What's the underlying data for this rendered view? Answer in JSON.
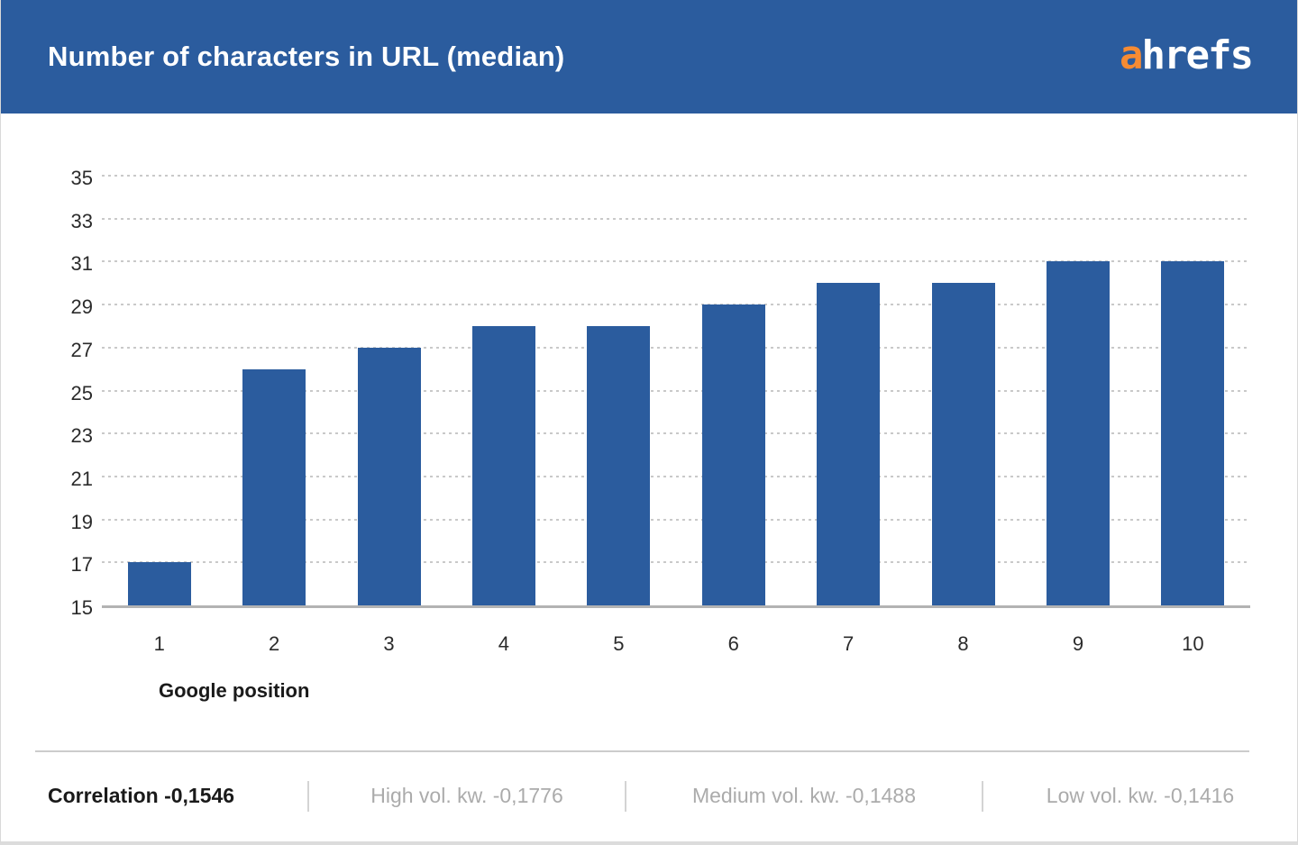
{
  "header": {
    "title": "Number of characters in URL (median)",
    "logo_a": "a",
    "logo_rest": "hrefs"
  },
  "chart_data": {
    "type": "bar",
    "title": "Number of characters in URL (median)",
    "categories": [
      "1",
      "2",
      "3",
      "4",
      "5",
      "6",
      "7",
      "8",
      "9",
      "10"
    ],
    "values": [
      17,
      26,
      27,
      28,
      28,
      29,
      30,
      30,
      31,
      31
    ],
    "xlabel": "Google position",
    "ylabel": "",
    "ylim": [
      15,
      35
    ],
    "ytick_step": 2,
    "y_ticks": [
      35,
      33,
      31,
      29,
      27,
      25,
      23,
      21,
      19,
      17,
      15
    ],
    "grid": "horizontal-dotted",
    "legend": "none",
    "bar_color": "#2B5C9E"
  },
  "footer": {
    "items": [
      {
        "text": "Correlation -0,1546"
      },
      {
        "text": "High vol. kw. -0,1776"
      },
      {
        "text": "Medium vol. kw. -0,1488"
      },
      {
        "text": "Low vol. kw. -0,1416"
      }
    ]
  },
  "colors": {
    "accent": "#2B5C9E",
    "logo_orange": "#F68B33",
    "grid": "#c9c9c9",
    "baseline": "#b3b3b3",
    "footer_muted": "#ababab"
  }
}
